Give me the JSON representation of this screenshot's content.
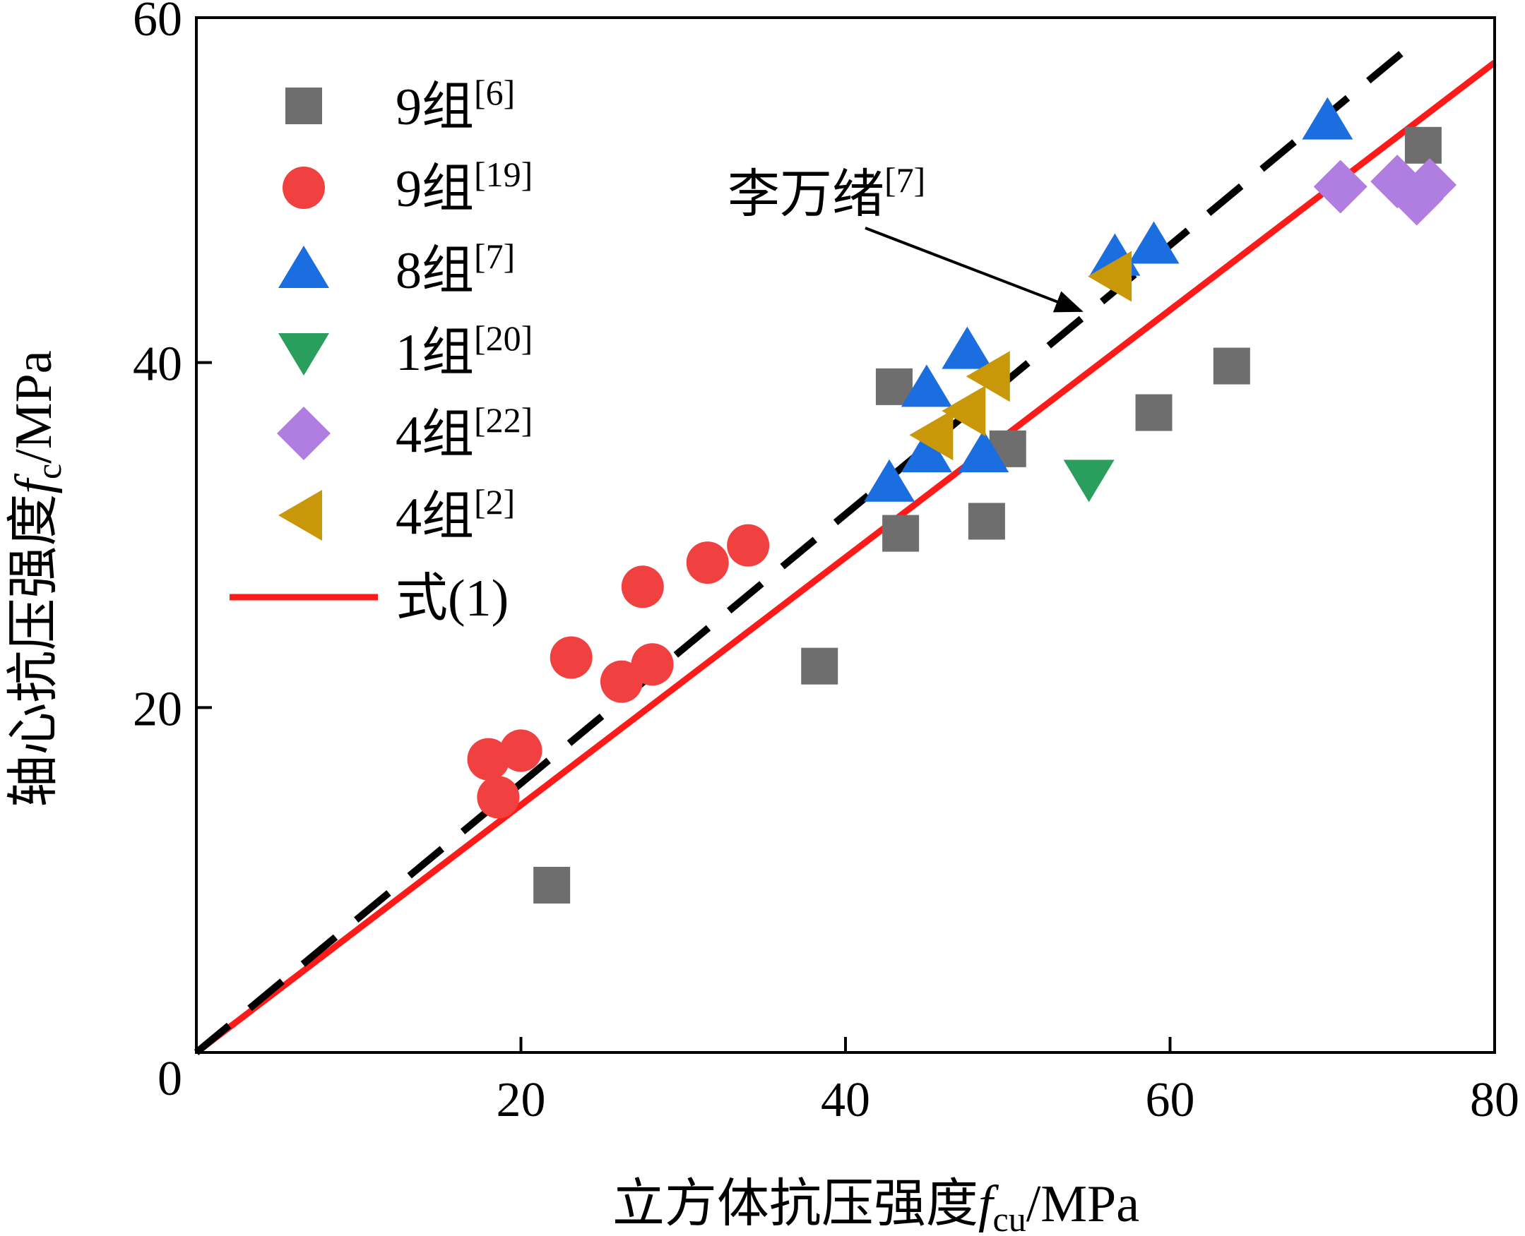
{
  "chart_data": {
    "type": "scatter",
    "x_title": {
      "main": "立方体抗压强度",
      "var": "f",
      "sub": "cu",
      "unit": "/MPa"
    },
    "y_title": {
      "main": "轴心抗压强度",
      "var": "f",
      "sub": "c",
      "unit": "/MPa"
    },
    "xlim": [
      0,
      80
    ],
    "ylim": [
      0,
      60
    ],
    "x_ticks": [
      0,
      20,
      40,
      60,
      80
    ],
    "y_ticks": [
      20,
      40,
      60
    ],
    "x_tick_labels": [
      "20",
      "40",
      "60",
      "80"
    ],
    "y_tick_labels": [
      "20",
      "40",
      "60"
    ],
    "origin_label": "0",
    "grid": false,
    "legend_position": "top-left",
    "series": [
      {
        "name": "9组",
        "ref": "[6]",
        "marker": "square",
        "color": "#6e6e6e",
        "points": [
          [
            21.9,
            9.7
          ],
          [
            38.4,
            22.4
          ],
          [
            43.0,
            38.6
          ],
          [
            43.4,
            30.1
          ],
          [
            48.7,
            30.8
          ],
          [
            50.0,
            35.0
          ],
          [
            59.0,
            37.1
          ],
          [
            63.8,
            39.8
          ],
          [
            75.6,
            52.6
          ]
        ]
      },
      {
        "name": "9组",
        "ref": "[19]",
        "marker": "circle",
        "color": "#f04040",
        "points": [
          [
            18.0,
            17.0
          ],
          [
            18.6,
            14.8
          ],
          [
            20.0,
            17.5
          ],
          [
            23.1,
            22.9
          ],
          [
            26.2,
            21.5
          ],
          [
            27.5,
            27.0
          ],
          [
            28.1,
            22.5
          ],
          [
            31.5,
            28.4
          ],
          [
            34.0,
            29.4
          ]
        ]
      },
      {
        "name": "8组",
        "ref": "[7]",
        "marker": "triangle-up",
        "color": "#1a6ee0",
        "points": [
          [
            42.7,
            33.0
          ],
          [
            45.0,
            34.7
          ],
          [
            45.0,
            38.5
          ],
          [
            47.5,
            40.7
          ],
          [
            48.5,
            34.7
          ],
          [
            56.6,
            46.1
          ],
          [
            59.0,
            46.8
          ],
          [
            69.7,
            54.0
          ]
        ]
      },
      {
        "name": "1组",
        "ref": "[20]",
        "marker": "triangle-down",
        "color": "#2a9e5c",
        "points": [
          [
            55.0,
            33.3
          ]
        ]
      },
      {
        "name": "4组",
        "ref": "[22]",
        "marker": "diamond",
        "color": "#b07ee0",
        "points": [
          [
            70.5,
            50.2
          ],
          [
            74.0,
            50.5
          ],
          [
            75.2,
            49.5
          ],
          [
            76.0,
            50.3
          ]
        ]
      },
      {
        "name": "4组",
        "ref": "[2]",
        "marker": "triangle-left",
        "color": "#c9980a",
        "points": [
          [
            45.5,
            35.8
          ],
          [
            47.5,
            37.2
          ],
          [
            49.0,
            39.2
          ],
          [
            56.5,
            45.0
          ]
        ]
      }
    ],
    "lines": [
      {
        "name": "式(1)",
        "style": "solid",
        "color": "#ff1a1a",
        "x": [
          0,
          80
        ],
        "y": [
          0,
          57.4
        ]
      },
      {
        "name": "李万绪",
        "ref": "[7]",
        "style": "dashed",
        "color": "#000000",
        "x": [
          0,
          75.5
        ],
        "y": [
          0,
          58.9
        ]
      }
    ],
    "annotation": {
      "text": "李万绪",
      "ref": "[7]",
      "target": [
        54.5,
        43.0
      ]
    }
  }
}
